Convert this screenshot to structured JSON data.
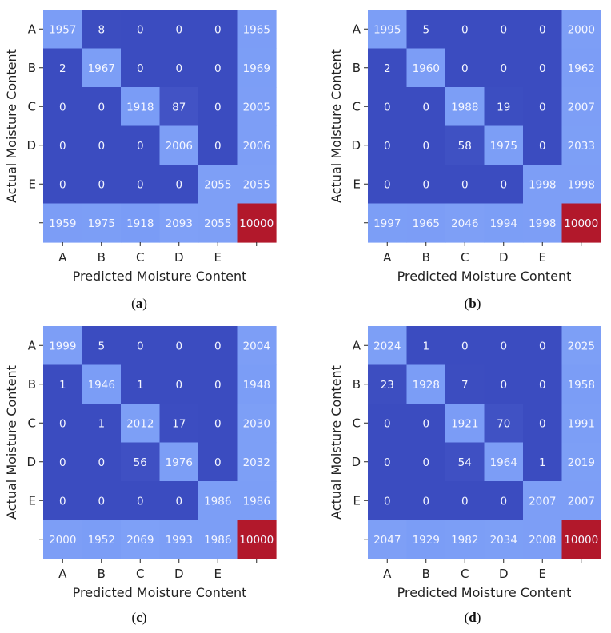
{
  "chart_data": [
    {
      "type": "heatmap",
      "caption": "a",
      "xlabel": "Predicted Moisture Content",
      "ylabel": "Actual Moisture Content",
      "x_ticks": [
        "A",
        "B",
        "C",
        "D",
        "E",
        ""
      ],
      "y_ticks": [
        "A",
        "B",
        "C",
        "D",
        "E",
        ""
      ],
      "matrix": [
        [
          1957,
          8,
          0,
          0,
          0,
          1965
        ],
        [
          2,
          1967,
          0,
          0,
          0,
          1969
        ],
        [
          0,
          0,
          1918,
          87,
          0,
          2005
        ],
        [
          0,
          0,
          0,
          2006,
          0,
          2006
        ],
        [
          0,
          0,
          0,
          0,
          2055,
          2055
        ],
        [
          1959,
          1975,
          1918,
          2093,
          2055,
          10000
        ]
      ]
    },
    {
      "type": "heatmap",
      "caption": "b",
      "xlabel": "Predicted Moisture Content",
      "ylabel": "Actual Moisture Content",
      "x_ticks": [
        "A",
        "B",
        "C",
        "D",
        "E",
        ""
      ],
      "y_ticks": [
        "A",
        "B",
        "C",
        "D",
        "E",
        ""
      ],
      "matrix": [
        [
          1995,
          5,
          0,
          0,
          0,
          2000
        ],
        [
          2,
          1960,
          0,
          0,
          0,
          1962
        ],
        [
          0,
          0,
          1988,
          19,
          0,
          2007
        ],
        [
          0,
          0,
          58,
          1975,
          0,
          2033
        ],
        [
          0,
          0,
          0,
          0,
          1998,
          1998
        ],
        [
          1997,
          1965,
          2046,
          1994,
          1998,
          10000
        ]
      ]
    },
    {
      "type": "heatmap",
      "caption": "c",
      "xlabel": "Predicted Moisture Content",
      "ylabel": "Actual Moisture Content",
      "x_ticks": [
        "A",
        "B",
        "C",
        "D",
        "E",
        ""
      ],
      "y_ticks": [
        "A",
        "B",
        "C",
        "D",
        "E",
        ""
      ],
      "matrix": [
        [
          1999,
          5,
          0,
          0,
          0,
          2004
        ],
        [
          1,
          1946,
          1,
          0,
          0,
          1948
        ],
        [
          0,
          1,
          2012,
          17,
          0,
          2030
        ],
        [
          0,
          0,
          56,
          1976,
          0,
          2032
        ],
        [
          0,
          0,
          0,
          0,
          1986,
          1986
        ],
        [
          2000,
          1952,
          2069,
          1993,
          1986,
          10000
        ]
      ]
    },
    {
      "type": "heatmap",
      "caption": "d",
      "xlabel": "Predicted Moisture Content",
      "ylabel": "Actual Moisture Content",
      "x_ticks": [
        "A",
        "B",
        "C",
        "D",
        "E",
        ""
      ],
      "y_ticks": [
        "A",
        "B",
        "C",
        "D",
        "E",
        ""
      ],
      "matrix": [
        [
          2024,
          1,
          0,
          0,
          0,
          2025
        ],
        [
          23,
          1928,
          7,
          0,
          0,
          1958
        ],
        [
          0,
          0,
          1921,
          70,
          0,
          1991
        ],
        [
          0,
          0,
          54,
          1964,
          1,
          2019
        ],
        [
          0,
          0,
          0,
          0,
          2007,
          2007
        ],
        [
          2047,
          1929,
          1982,
          2034,
          2008,
          10000
        ]
      ]
    }
  ],
  "colors": {
    "low": "#3b4cc0",
    "mid": "#7a9cf6",
    "high": "#b2182b"
  }
}
